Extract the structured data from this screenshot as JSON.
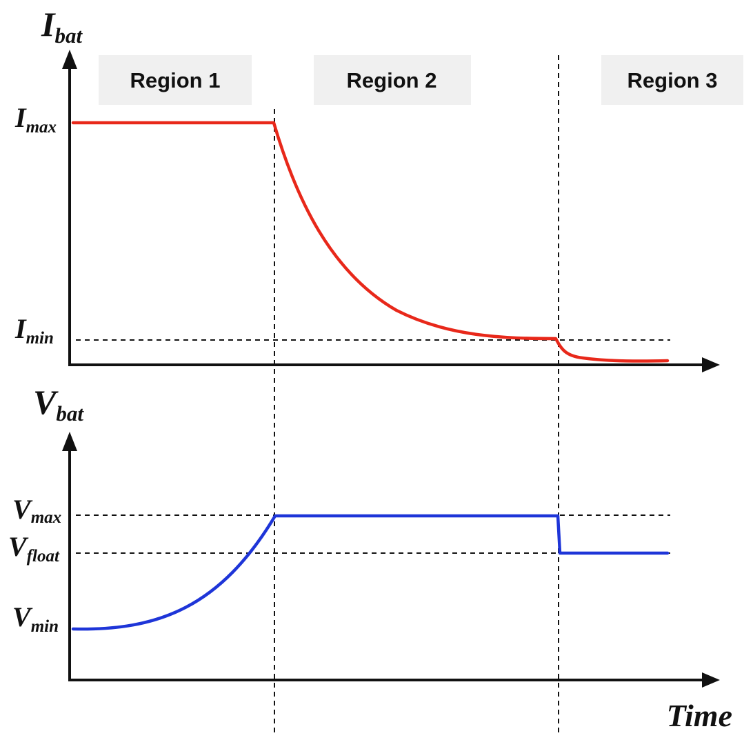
{
  "regions": [
    {
      "label": "Region 1"
    },
    {
      "label": "Region 2"
    },
    {
      "label": "Region 3"
    }
  ],
  "current_axis": {
    "label_main": "I",
    "label_sub": "bat",
    "levels": [
      {
        "main": "I",
        "sub": "max"
      },
      {
        "main": "I",
        "sub": "min"
      }
    ]
  },
  "voltage_axis": {
    "label_main": "V",
    "label_sub": "bat",
    "levels": [
      {
        "main": "V",
        "sub": "max"
      },
      {
        "main": "V",
        "sub": "float"
      },
      {
        "main": "V",
        "sub": "min"
      }
    ]
  },
  "time_axis": {
    "label": "Time"
  },
  "colors": {
    "current_curve": "#e8281a",
    "voltage_curve": "#1e35d8",
    "region_box": "#f0f0f0",
    "axis": "#111111"
  }
}
